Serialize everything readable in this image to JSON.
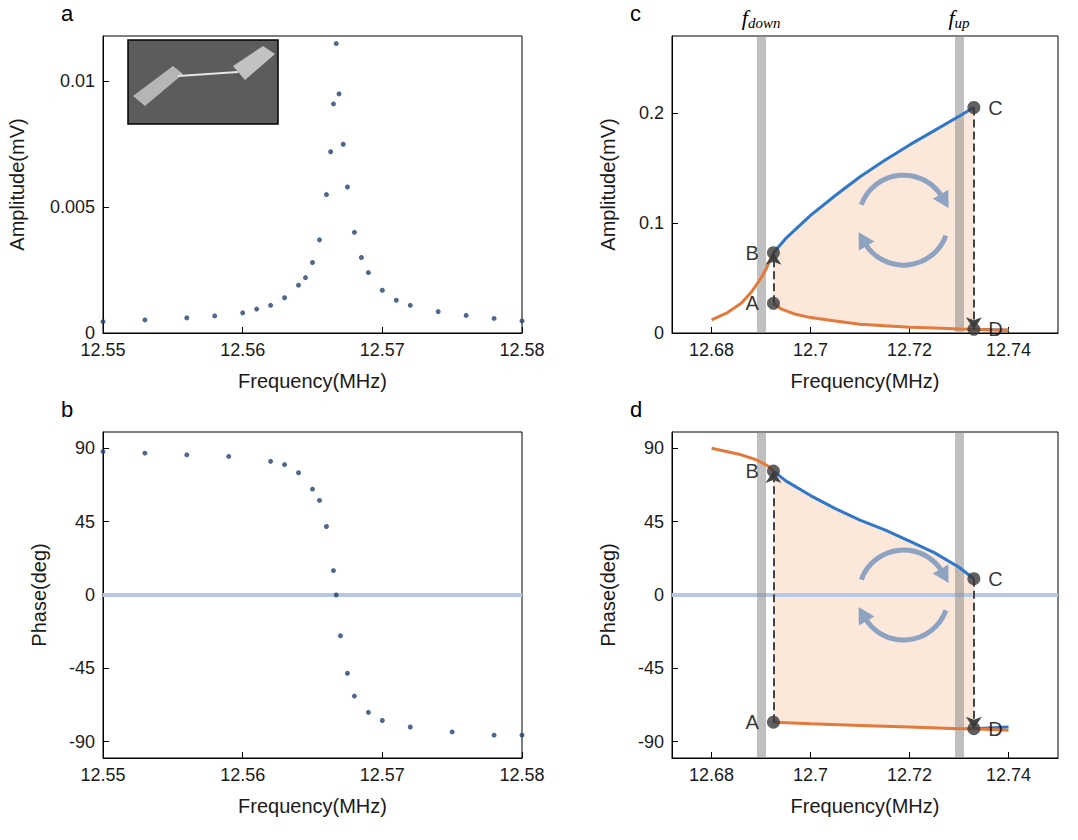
{
  "chart_data": [
    {
      "type": "scatter",
      "panel_label": "a",
      "xlabel": "Frequency(MHz)",
      "ylabel": "Amplitude(mV)",
      "xlim": [
        12.55,
        12.58
      ],
      "xticks": [
        12.55,
        12.56,
        12.57,
        12.58
      ],
      "ylim": [
        0,
        0.0118
      ],
      "yticks": [
        0,
        0.005,
        0.01
      ],
      "grid": false,
      "series": [
        {
          "color": "#24426e",
          "marker": "circle",
          "x": [
            12.55,
            12.553,
            12.556,
            12.558,
            12.56,
            12.561,
            12.562,
            12.563,
            12.564,
            12.5645,
            12.565,
            12.5655,
            12.566,
            12.5663,
            12.5665,
            12.5667,
            12.5669,
            12.5672,
            12.5675,
            12.568,
            12.5685,
            12.569,
            12.57,
            12.571,
            12.572,
            12.574,
            12.576,
            12.578,
            12.58
          ],
          "values": [
            0.00045,
            0.00052,
            0.0006,
            0.00068,
            0.0008,
            0.00095,
            0.0011,
            0.0014,
            0.0019,
            0.0022,
            0.0028,
            0.0037,
            0.0055,
            0.0072,
            0.0091,
            0.0115,
            0.0095,
            0.0075,
            0.0058,
            0.004,
            0.003,
            0.0024,
            0.0017,
            0.0013,
            0.0011,
            0.00085,
            0.0007,
            0.00058,
            0.00048
          ]
        }
      ]
    },
    {
      "type": "scatter",
      "panel_label": "b",
      "xlabel": "Frequency(MHz)",
      "ylabel": "Phase(deg)",
      "xlim": [
        12.55,
        12.58
      ],
      "xticks": [
        12.55,
        12.56,
        12.57,
        12.58
      ],
      "ylim": [
        -100,
        100
      ],
      "yticks": [
        -90,
        -45,
        0,
        45,
        90
      ],
      "grid": false,
      "reference_line": 0,
      "series": [
        {
          "color": "#24426e",
          "marker": "circle",
          "x": [
            12.55,
            12.553,
            12.556,
            12.559,
            12.562,
            12.563,
            12.564,
            12.565,
            12.5655,
            12.566,
            12.5665,
            12.5667,
            12.567,
            12.5675,
            12.568,
            12.569,
            12.57,
            12.572,
            12.575,
            12.578,
            12.58
          ],
          "values": [
            88,
            87,
            86,
            85,
            82,
            80,
            75,
            65,
            58,
            42,
            15,
            0,
            -25,
            -48,
            -62,
            -72,
            -77,
            -81,
            -84,
            -86,
            -86
          ]
        }
      ]
    },
    {
      "type": "line",
      "panel_label": "c",
      "xlabel": "Frequency(MHz)",
      "ylabel": "Amplitude(mV)",
      "xlim": [
        12.672,
        12.75
      ],
      "xticks": [
        12.68,
        12.7,
        12.72,
        12.74
      ],
      "ylim": [
        0,
        0.27
      ],
      "yticks": [
        0,
        0.1,
        0.2
      ],
      "grid": false,
      "vlines": [
        {
          "value": 12.6925,
          "label": "f",
          "subscript": "down"
        },
        {
          "value": 12.733,
          "label": "f",
          "subscript": "up"
        }
      ],
      "points": [
        {
          "label": "A",
          "x": 12.6925,
          "y": 0.027
        },
        {
          "label": "B",
          "x": 12.6925,
          "y": 0.073
        },
        {
          "label": "C",
          "x": 12.733,
          "y": 0.205
        },
        {
          "label": "D",
          "x": 12.733,
          "y": 0.0034
        }
      ],
      "jumps": [
        [
          "A",
          "B"
        ],
        [
          "C",
          "D"
        ]
      ],
      "series": [
        {
          "color": "#2f78c8",
          "line_style": "solid",
          "x": [
            12.6925,
            12.695,
            12.7,
            12.705,
            12.71,
            12.715,
            12.72,
            12.725,
            12.73,
            12.733,
            12.733,
            12.733,
            12.74
          ],
          "values": [
            0.073,
            0.086,
            0.107,
            0.125,
            0.142,
            0.157,
            0.171,
            0.184,
            0.197,
            0.205,
            null,
            0.0035,
            0.0026
          ]
        },
        {
          "color": "#e3793b",
          "line_style": "solid",
          "x": [
            12.68,
            12.683,
            12.686,
            12.688,
            12.69,
            12.691,
            12.692,
            12.6925,
            12.6925,
            12.6925,
            12.694,
            12.697,
            12.7,
            12.705,
            12.71,
            12.715,
            12.72,
            12.725,
            12.73,
            12.733,
            12.736,
            12.74
          ],
          "values": [
            0.012,
            0.018,
            0.027,
            0.037,
            0.05,
            0.058,
            0.068,
            0.073,
            null,
            0.027,
            0.022,
            0.017,
            0.014,
            0.011,
            0.008,
            0.0065,
            0.0053,
            0.0045,
            0.0037,
            0.0034,
            0.003,
            0.0027
          ]
        }
      ]
    },
    {
      "type": "line",
      "panel_label": "d",
      "xlabel": "Frequency(MHz)",
      "ylabel": "Phase(deg)",
      "xlim": [
        12.672,
        12.75
      ],
      "xticks": [
        12.68,
        12.7,
        12.72,
        12.74
      ],
      "ylim": [
        -100,
        100
      ],
      "yticks": [
        -90,
        -45,
        0,
        45,
        90
      ],
      "grid": false,
      "reference_line": 0,
      "vlines": [
        {
          "value": 12.6925
        },
        {
          "value": 12.733
        }
      ],
      "points": [
        {
          "label": "A",
          "x": 12.6925,
          "y": -78
        },
        {
          "label": "B",
          "x": 12.6925,
          "y": 76
        },
        {
          "label": "C",
          "x": 12.733,
          "y": 10
        },
        {
          "label": "D",
          "x": 12.733,
          "y": -82
        }
      ],
      "jumps": [
        [
          "A",
          "B"
        ],
        [
          "C",
          "D"
        ]
      ],
      "series": [
        {
          "color": "#2f78c8",
          "line_style": "solid",
          "x": [
            12.6925,
            12.695,
            12.7,
            12.705,
            12.71,
            12.715,
            12.72,
            12.725,
            12.73,
            12.733,
            12.733,
            12.733,
            12.74
          ],
          "values": [
            76,
            70,
            61,
            53,
            46,
            40,
            33,
            26,
            17,
            10,
            null,
            -82,
            -81
          ]
        },
        {
          "color": "#e3793b",
          "line_style": "solid",
          "x": [
            12.68,
            12.683,
            12.686,
            12.689,
            12.6915,
            12.6925,
            12.6925,
            12.6925,
            12.7,
            12.71,
            12.72,
            12.73,
            12.733,
            12.74
          ],
          "values": [
            90,
            88,
            86,
            83,
            79,
            76,
            null,
            -78,
            -79,
            -80,
            -81,
            -82,
            -82,
            -83
          ]
        }
      ]
    }
  ]
}
